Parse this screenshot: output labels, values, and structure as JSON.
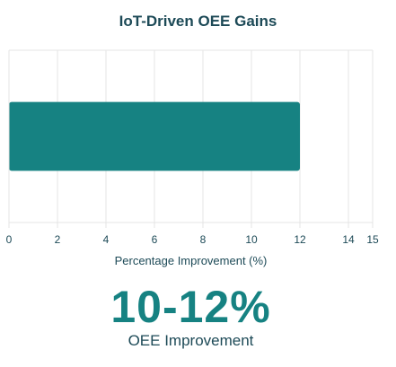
{
  "chart_data": {
    "type": "bar",
    "orientation": "horizontal",
    "title": "IoT-Driven OEE Gains",
    "xlabel": "Percentage Improvement (%)",
    "ylabel": "",
    "categories": [
      ""
    ],
    "values": [
      12
    ],
    "xlim": [
      0,
      15
    ],
    "x_ticks": [
      0,
      2,
      4,
      6,
      8,
      10,
      12,
      14,
      15
    ],
    "grid": true,
    "legend": "none"
  },
  "colors": {
    "bar": "#168282",
    "text": "#1d4a57",
    "grid": "#e4e4e4"
  },
  "stat": {
    "value": "10-12%",
    "label": "OEE Improvement"
  }
}
